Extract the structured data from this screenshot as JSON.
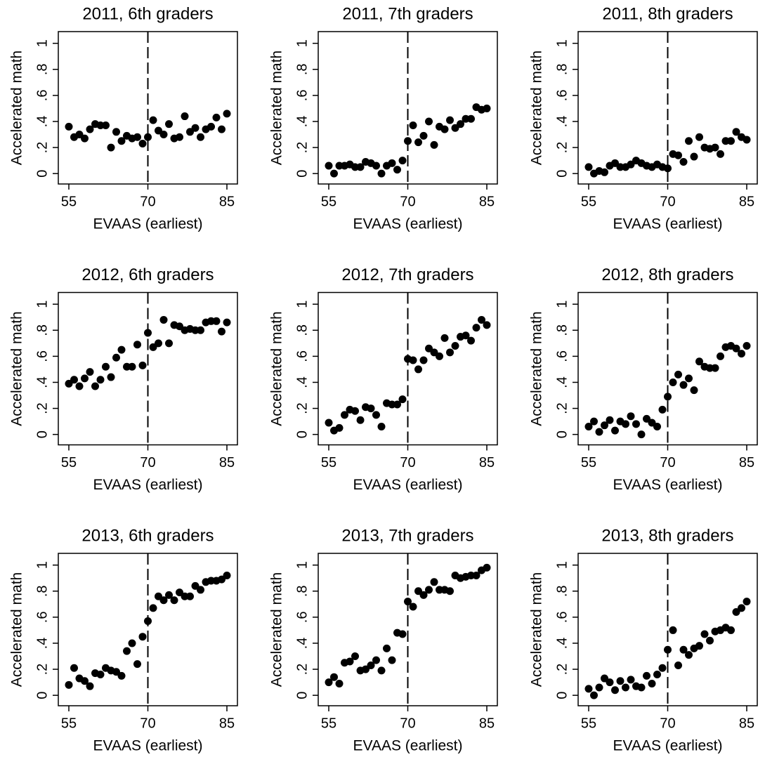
{
  "chart_data": [
    {
      "type": "scatter",
      "title": "2011, 6th graders",
      "x_label": "EVAAS (earliest)",
      "y_label": "Accelerated math",
      "color": "#000000",
      "cutoff": 70,
      "xlim": [
        53,
        87
      ],
      "ylim": [
        -0.08,
        1.09
      ],
      "xticks": [
        55,
        70,
        85
      ],
      "yticks": [
        0,
        {
          "value": 0.2,
          "label": ".2"
        },
        {
          "value": 0.4,
          "label": ".4"
        },
        {
          "value": 0.6,
          "label": ".6"
        },
        {
          "value": 0.8,
          "label": ".8"
        },
        1
      ],
      "x": [
        55,
        56,
        57,
        58,
        59,
        60,
        61,
        62,
        63,
        64,
        65,
        66,
        67,
        68,
        69,
        70,
        71,
        72,
        73,
        74,
        75,
        76,
        77,
        78,
        79,
        80,
        81,
        82,
        83,
        84,
        85
      ],
      "values": [
        0.36,
        0.28,
        0.3,
        0.27,
        0.34,
        0.38,
        0.37,
        0.37,
        0.2,
        0.32,
        0.25,
        0.29,
        0.27,
        0.28,
        0.23,
        0.28,
        0.41,
        0.33,
        0.3,
        0.38,
        0.27,
        0.28,
        0.44,
        0.32,
        0.35,
        0.28,
        0.34,
        0.36,
        0.43,
        0.34,
        0.46
      ]
    },
    {
      "type": "scatter",
      "title": "2011, 7th graders",
      "x_label": "EVAAS (earliest)",
      "y_label": "Accelerated math",
      "color": "#000000",
      "cutoff": 70,
      "xlim": [
        53,
        87
      ],
      "ylim": [
        -0.08,
        1.09
      ],
      "xticks": [
        55,
        70,
        85
      ],
      "yticks": [
        0,
        {
          "value": 0.2,
          "label": ".2"
        },
        {
          "value": 0.4,
          "label": ".4"
        },
        {
          "value": 0.6,
          "label": ".6"
        },
        {
          "value": 0.8,
          "label": ".8"
        },
        1
      ],
      "x": [
        55,
        56,
        57,
        58,
        59,
        60,
        61,
        62,
        63,
        64,
        65,
        66,
        67,
        68,
        69,
        70,
        71,
        72,
        73,
        74,
        75,
        76,
        77,
        78,
        79,
        80,
        81,
        82,
        83,
        84,
        85
      ],
      "values": [
        0.06,
        0.0,
        0.06,
        0.06,
        0.07,
        0.05,
        0.05,
        0.09,
        0.08,
        0.06,
        0.0,
        0.06,
        0.08,
        0.03,
        0.1,
        0.25,
        0.37,
        0.24,
        0.29,
        0.4,
        0.22,
        0.36,
        0.34,
        0.41,
        0.35,
        0.38,
        0.42,
        0.42,
        0.51,
        0.49,
        0.5
      ]
    },
    {
      "type": "scatter",
      "title": "2011, 8th graders",
      "x_label": "EVAAS (earliest)",
      "y_label": "Accelerated math",
      "color": "#000000",
      "cutoff": 70,
      "xlim": [
        53,
        87
      ],
      "ylim": [
        -0.08,
        1.09
      ],
      "xticks": [
        55,
        70,
        85
      ],
      "yticks": [
        0,
        {
          "value": 0.2,
          "label": ".2"
        },
        {
          "value": 0.4,
          "label": ".4"
        },
        {
          "value": 0.6,
          "label": ".6"
        },
        {
          "value": 0.8,
          "label": ".8"
        },
        1
      ],
      "x": [
        55,
        56,
        57,
        58,
        59,
        60,
        61,
        62,
        63,
        64,
        65,
        66,
        67,
        68,
        69,
        70,
        71,
        72,
        73,
        74,
        75,
        76,
        77,
        78,
        79,
        80,
        81,
        82,
        83,
        84,
        85
      ],
      "values": [
        0.05,
        0.0,
        0.02,
        0.01,
        0.06,
        0.08,
        0.05,
        0.05,
        0.07,
        0.1,
        0.08,
        0.06,
        0.05,
        0.07,
        0.05,
        0.04,
        0.15,
        0.14,
        0.09,
        0.25,
        0.13,
        0.28,
        0.2,
        0.19,
        0.2,
        0.15,
        0.25,
        0.25,
        0.32,
        0.28,
        0.26
      ]
    },
    {
      "type": "scatter",
      "title": "2012, 6th graders",
      "x_label": "EVAAS (earliest)",
      "y_label": "Accelerated math",
      "color": "#000000",
      "cutoff": 70,
      "xlim": [
        53,
        87
      ],
      "ylim": [
        -0.08,
        1.09
      ],
      "xticks": [
        55,
        70,
        85
      ],
      "yticks": [
        0,
        {
          "value": 0.2,
          "label": ".2"
        },
        {
          "value": 0.4,
          "label": ".4"
        },
        {
          "value": 0.6,
          "label": ".6"
        },
        {
          "value": 0.8,
          "label": ".8"
        },
        1
      ],
      "x": [
        55,
        56,
        57,
        58,
        59,
        60,
        61,
        62,
        63,
        64,
        65,
        66,
        67,
        68,
        69,
        70,
        71,
        72,
        73,
        74,
        75,
        76,
        77,
        78,
        79,
        80,
        81,
        82,
        83,
        84,
        85
      ],
      "values": [
        0.39,
        0.42,
        0.37,
        0.43,
        0.48,
        0.37,
        0.42,
        0.52,
        0.44,
        0.59,
        0.65,
        0.52,
        0.52,
        0.69,
        0.53,
        0.78,
        0.67,
        0.7,
        0.88,
        0.7,
        0.84,
        0.83,
        0.8,
        0.81,
        0.8,
        0.8,
        0.86,
        0.87,
        0.87,
        0.79,
        0.86
      ]
    },
    {
      "type": "scatter",
      "title": "2012, 7th graders",
      "x_label": "EVAAS (earliest)",
      "y_label": "Accelerated math",
      "color": "#000000",
      "cutoff": 70,
      "xlim": [
        53,
        87
      ],
      "ylim": [
        -0.08,
        1.09
      ],
      "xticks": [
        55,
        70,
        85
      ],
      "yticks": [
        0,
        {
          "value": 0.2,
          "label": ".2"
        },
        {
          "value": 0.4,
          "label": ".4"
        },
        {
          "value": 0.6,
          "label": ".6"
        },
        {
          "value": 0.8,
          "label": ".8"
        },
        1
      ],
      "x": [
        55,
        56,
        57,
        58,
        59,
        60,
        61,
        62,
        63,
        64,
        65,
        66,
        67,
        68,
        69,
        70,
        71,
        72,
        73,
        74,
        75,
        76,
        77,
        78,
        79,
        80,
        81,
        82,
        83,
        84,
        85
      ],
      "values": [
        0.09,
        0.03,
        0.05,
        0.15,
        0.19,
        0.18,
        0.11,
        0.21,
        0.2,
        0.15,
        0.06,
        0.24,
        0.23,
        0.23,
        0.27,
        0.58,
        0.57,
        0.5,
        0.57,
        0.66,
        0.63,
        0.6,
        0.74,
        0.63,
        0.68,
        0.75,
        0.76,
        0.72,
        0.82,
        0.88,
        0.84
      ]
    },
    {
      "type": "scatter",
      "title": "2012, 8th graders",
      "x_label": "EVAAS (earliest)",
      "y_label": "Accelerated math",
      "color": "#000000",
      "cutoff": 70,
      "xlim": [
        53,
        87
      ],
      "ylim": [
        -0.08,
        1.09
      ],
      "xticks": [
        55,
        70,
        85
      ],
      "yticks": [
        0,
        {
          "value": 0.2,
          "label": ".2"
        },
        {
          "value": 0.4,
          "label": ".4"
        },
        {
          "value": 0.6,
          "label": ".6"
        },
        {
          "value": 0.8,
          "label": ".8"
        },
        1
      ],
      "x": [
        55,
        56,
        57,
        58,
        59,
        60,
        61,
        62,
        63,
        64,
        65,
        66,
        67,
        68,
        69,
        70,
        71,
        72,
        73,
        74,
        75,
        76,
        77,
        78,
        79,
        80,
        81,
        82,
        83,
        84,
        85
      ],
      "values": [
        0.06,
        0.1,
        0.02,
        0.07,
        0.11,
        0.03,
        0.1,
        0.08,
        0.14,
        0.08,
        0.0,
        0.12,
        0.09,
        0.06,
        0.19,
        0.29,
        0.4,
        0.46,
        0.38,
        0.43,
        0.34,
        0.56,
        0.52,
        0.51,
        0.51,
        0.6,
        0.67,
        0.68,
        0.66,
        0.62,
        0.68
      ]
    },
    {
      "type": "scatter",
      "title": "2013, 6th graders",
      "x_label": "EVAAS (earliest)",
      "y_label": "Accelerated math",
      "color": "#000000",
      "cutoff": 70,
      "xlim": [
        53,
        87
      ],
      "ylim": [
        -0.08,
        1.09
      ],
      "xticks": [
        55,
        70,
        85
      ],
      "yticks": [
        0,
        {
          "value": 0.2,
          "label": ".2"
        },
        {
          "value": 0.4,
          "label": ".4"
        },
        {
          "value": 0.6,
          "label": ".6"
        },
        {
          "value": 0.8,
          "label": ".8"
        },
        1
      ],
      "x": [
        55,
        56,
        57,
        58,
        59,
        60,
        61,
        62,
        63,
        64,
        65,
        66,
        67,
        68,
        69,
        70,
        71,
        72,
        73,
        74,
        75,
        76,
        77,
        78,
        79,
        80,
        81,
        82,
        83,
        84,
        85
      ],
      "values": [
        0.08,
        0.21,
        0.13,
        0.11,
        0.07,
        0.17,
        0.16,
        0.21,
        0.19,
        0.18,
        0.15,
        0.34,
        0.4,
        0.24,
        0.45,
        0.57,
        0.67,
        0.76,
        0.73,
        0.77,
        0.73,
        0.79,
        0.76,
        0.76,
        0.84,
        0.81,
        0.87,
        0.88,
        0.88,
        0.89,
        0.92
      ]
    },
    {
      "type": "scatter",
      "title": "2013, 7th graders",
      "x_label": "EVAAS (earliest)",
      "y_label": "Accelerated math",
      "color": "#000000",
      "cutoff": 70,
      "xlim": [
        53,
        87
      ],
      "ylim": [
        -0.08,
        1.09
      ],
      "xticks": [
        55,
        70,
        85
      ],
      "yticks": [
        0,
        {
          "value": 0.2,
          "label": ".2"
        },
        {
          "value": 0.4,
          "label": ".4"
        },
        {
          "value": 0.6,
          "label": ".6"
        },
        {
          "value": 0.8,
          "label": ".8"
        },
        1
      ],
      "x": [
        55,
        56,
        57,
        58,
        59,
        60,
        61,
        62,
        63,
        64,
        65,
        66,
        67,
        68,
        69,
        70,
        71,
        72,
        73,
        74,
        75,
        76,
        77,
        78,
        79,
        80,
        81,
        82,
        83,
        84,
        85
      ],
      "values": [
        0.1,
        0.14,
        0.09,
        0.25,
        0.26,
        0.3,
        0.19,
        0.2,
        0.23,
        0.27,
        0.19,
        0.36,
        0.27,
        0.48,
        0.47,
        0.72,
        0.68,
        0.8,
        0.77,
        0.81,
        0.87,
        0.81,
        0.81,
        0.8,
        0.92,
        0.9,
        0.91,
        0.92,
        0.92,
        0.96,
        0.98
      ]
    },
    {
      "type": "scatter",
      "title": "2013, 8th graders",
      "x_label": "EVAAS (earliest)",
      "y_label": "Accelerated math",
      "color": "#000000",
      "cutoff": 70,
      "xlim": [
        53,
        87
      ],
      "ylim": [
        -0.08,
        1.09
      ],
      "xticks": [
        55,
        70,
        85
      ],
      "yticks": [
        0,
        {
          "value": 0.2,
          "label": ".2"
        },
        {
          "value": 0.4,
          "label": ".4"
        },
        {
          "value": 0.6,
          "label": ".6"
        },
        {
          "value": 0.8,
          "label": ".8"
        },
        1
      ],
      "x": [
        55,
        56,
        57,
        58,
        59,
        60,
        61,
        62,
        63,
        64,
        65,
        66,
        67,
        68,
        69,
        70,
        71,
        72,
        73,
        74,
        75,
        76,
        77,
        78,
        79,
        80,
        81,
        82,
        83,
        84,
        85
      ],
      "values": [
        0.05,
        0.0,
        0.06,
        0.13,
        0.1,
        0.04,
        0.11,
        0.06,
        0.12,
        0.07,
        0.06,
        0.15,
        0.09,
        0.16,
        0.21,
        0.35,
        0.5,
        0.23,
        0.35,
        0.31,
        0.36,
        0.38,
        0.47,
        0.42,
        0.49,
        0.5,
        0.52,
        0.5,
        0.64,
        0.67,
        0.72
      ]
    }
  ]
}
